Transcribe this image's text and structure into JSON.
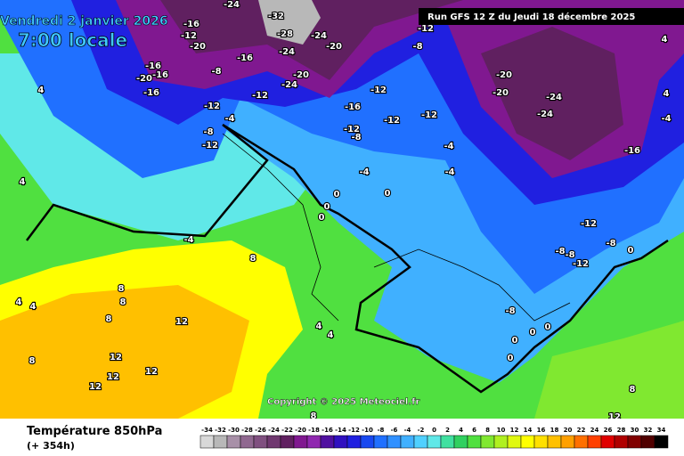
{
  "header": {
    "date": "Vendredi 2 janvier 2026",
    "time": "7:00 locale",
    "run": "Run GFS 12 Z du Jeudi 18 décembre 2025"
  },
  "copyright": "Copyright © 2025 Meteociel.fr",
  "footer": {
    "title": "Température 850hPa",
    "lead_time": "(+ 354h)"
  },
  "legend": {
    "values": [
      -34,
      -32,
      -30,
      -28,
      -26,
      -24,
      -22,
      -20,
      -18,
      -16,
      -14,
      -12,
      -10,
      -8,
      -6,
      -4,
      -2,
      0,
      2,
      4,
      6,
      8,
      10,
      12,
      14,
      16,
      18,
      20,
      22,
      24,
      26,
      28,
      30,
      32,
      34
    ],
    "colors": [
      "#d8d8d8",
      "#b8b8b8",
      "#a890a8",
      "#906890",
      "#805080",
      "#703870",
      "#602060",
      "#801890",
      "#9028b0",
      "#5010a0",
      "#3010c0",
      "#2020e0",
      "#1848f0",
      "#2070ff",
      "#3090ff",
      "#40b0ff",
      "#50d0ff",
      "#60e8e8",
      "#40e0a0",
      "#30d060",
      "#50e040",
      "#80e830",
      "#b0f020",
      "#e0f810",
      "#ffff00",
      "#ffe000",
      "#ffc000",
      "#ffa000",
      "#ff7000",
      "#ff4000",
      "#e00000",
      "#b00000",
      "#800000",
      "#500000",
      "#000000"
    ]
  },
  "contour_labels": [
    "-16",
    "-12",
    "-20",
    "-16",
    "-24",
    "-28",
    "-32",
    "-24",
    "-20",
    "-24",
    "-20",
    "-24",
    "-16",
    "-20",
    "-16",
    "-16",
    "-8",
    "-12",
    "-12",
    "-4",
    "-8",
    "-12",
    "-16",
    "-12",
    "-12",
    "-12",
    "-8",
    "-12",
    "-12",
    "-8",
    "-4",
    "-4",
    "-4",
    "0",
    "0",
    "0",
    "0",
    "-4",
    "-20",
    "-20",
    "-24",
    "-24",
    "-16",
    "-12",
    "-8",
    "-8",
    "-8",
    "-12",
    "0",
    "4",
    "4",
    "-4",
    "4",
    "4",
    "8",
    "8",
    "8",
    "4",
    "4",
    "8",
    "12",
    "4",
    "4",
    "8",
    "12",
    "12",
    "12",
    "12",
    "0",
    "0",
    "0",
    "0",
    "-8",
    "8",
    "12",
    "8"
  ]
}
